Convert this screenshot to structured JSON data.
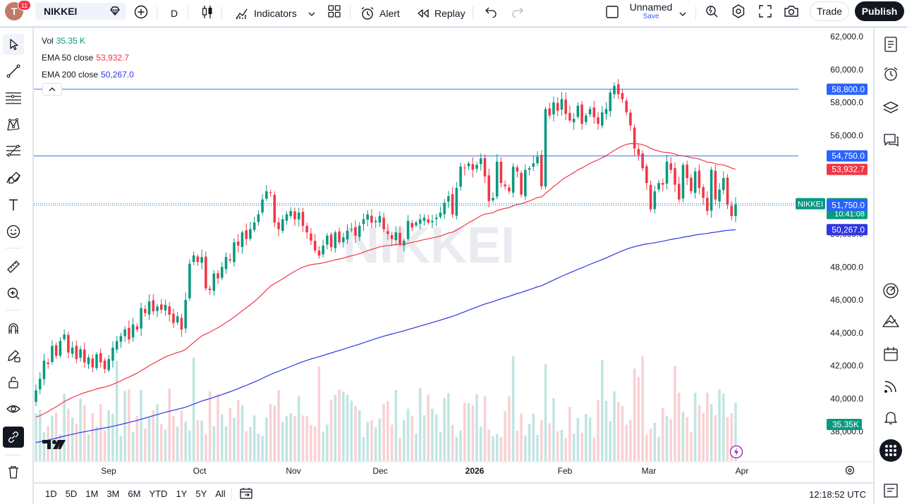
{
  "header": {
    "avatar_letter": "T",
    "notifications": "11",
    "symbol": "NIKKEI",
    "interval": "D",
    "indicators": "Indicators",
    "alert": "Alert",
    "replay": "Replay",
    "layout_name": "Unnamed",
    "layout_save": "Save",
    "trade": "Trade",
    "publish": "Publish"
  },
  "legend": {
    "vol_label": "Vol",
    "vol_value": "35.35 K",
    "ema50_label": "EMA 50 close",
    "ema50_value": "53,932.7",
    "ema200_label": "EMA 200 close",
    "ema200_value": "50,267.0"
  },
  "watermark": "NIKKEI",
  "price_axis": {
    "ticks": [
      "62,000.0",
      "60,000.0",
      "58,000.0",
      "56,000.0",
      "54,000.0",
      "52,000.0",
      "50,000.0",
      "48,000.0",
      "46,000.0",
      "44,000.0",
      "42,000.0",
      "40,000.0",
      "38,000.0"
    ],
    "hline_labels": [
      "58,800.0",
      "54,750.0"
    ],
    "ema50_label": "53,932.7",
    "current_symbol": "NIKKEI",
    "current_price": "51,842.8",
    "countdown": "10:41:08",
    "hline3_label": "51,750.0",
    "ema200_label": "50,267.0",
    "vol_label": "35.35K"
  },
  "time_axis": {
    "labels": [
      "Sep",
      "Oct",
      "Nov",
      "Dec",
      "2026",
      "Feb",
      "Mar",
      "Apr"
    ]
  },
  "bottom": {
    "timeframes": [
      "1D",
      "5D",
      "1M",
      "3M",
      "6M",
      "YTD",
      "1Y",
      "5Y",
      "All"
    ],
    "clock": "12:18:52 UTC"
  },
  "colors": {
    "up": "#089981",
    "down": "#f23645",
    "ema50": "#f23645",
    "ema200": "#2f36e0",
    "hline": "#2962ff",
    "vol_up": "#b2dfdb",
    "vol_down": "#f7c6c9"
  },
  "chart_data": {
    "type": "candlestick",
    "title": "NIKKEI",
    "ylim": [
      37000,
      62500
    ],
    "horizontal_lines": [
      58800,
      54750,
      51750
    ],
    "current_price": 51842.8,
    "closes": [
      40500,
      41200,
      42300,
      42100,
      43200,
      42600,
      43500,
      43900,
      42800,
      43100,
      42400,
      43000,
      42200,
      42500,
      41900,
      42700,
      42200,
      41800,
      42400,
      43100,
      43500,
      43800,
      44200,
      43600,
      44500,
      44200,
      45500,
      45200,
      45900,
      45300,
      45600,
      45400,
      45700,
      45100,
      44600,
      45000,
      44200,
      46000,
      48200,
      48700,
      48300,
      48600,
      46700,
      46600,
      47600,
      47300,
      48000,
      48600,
      48400,
      49500,
      49300,
      50100,
      49700,
      50300,
      50700,
      51200,
      52100,
      52600,
      52500,
      50700,
      50300,
      50900,
      51200,
      51400,
      50900,
      51300,
      50500,
      50100,
      49600,
      49000,
      48700,
      49300,
      49900,
      49200,
      50100,
      49500,
      49800,
      50200,
      50300,
      49900,
      50500,
      50900,
      51200,
      50700,
      50800,
      51100,
      50300,
      50000,
      49700,
      50100,
      49400,
      49600,
      50800,
      50400,
      50700,
      50900,
      51000,
      50700,
      50800,
      51000,
      51300,
      51900,
      52300,
      51200,
      52800,
      54100,
      54000,
      54300,
      53900,
      54200,
      54600,
      53500,
      52000,
      52200,
      54400,
      53100,
      52900,
      52600,
      54100,
      53800,
      52400,
      53900,
      54000,
      54300,
      54700,
      52900,
      57600,
      57200,
      58000,
      57500,
      58200,
      57300,
      56900,
      57000,
      57800,
      56700,
      57200,
      57600,
      57100,
      56700,
      57400,
      57600,
      58600,
      59000,
      58500,
      58200,
      57400,
      56600,
      55200,
      54800,
      54000,
      53100,
      51500,
      52600,
      53100,
      53000,
      54400,
      53900,
      53000,
      52100,
      54200,
      53400,
      52600,
      53800,
      52800,
      52200,
      51400,
      53900,
      52100,
      52700,
      53400,
      51800,
      51100,
      51800
    ],
    "volume_scale_max": 250,
    "x_axis": [
      "Sep",
      "Oct",
      "Nov",
      "Dec",
      "2026",
      "Feb",
      "Mar",
      "Apr"
    ]
  }
}
